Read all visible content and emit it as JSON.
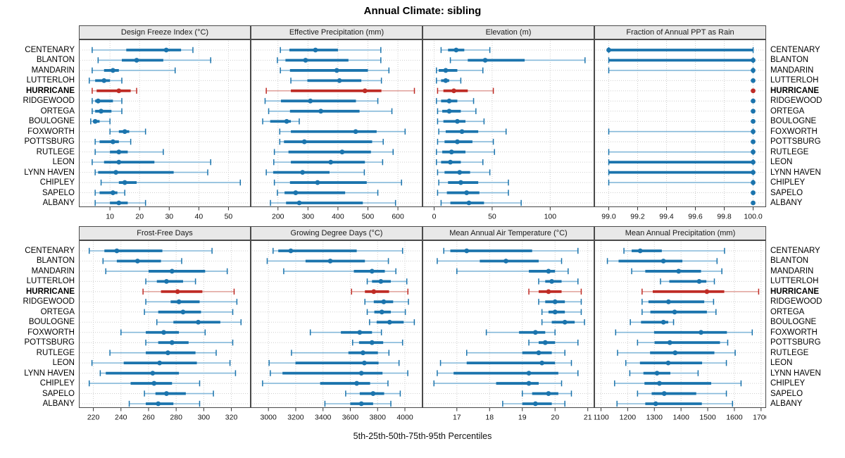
{
  "title": "Annual Climate: sibling",
  "xlabel": "5th-25th-50th-75th-95th Percentiles",
  "highlight_station": "HURRICANE",
  "stations": [
    "CENTENARY",
    "BLANTON",
    "MANDARIN",
    "LUTTERLOH",
    "HURRICANE",
    "RIDGEWOOD",
    "ORTEGA",
    "BOULOGNE",
    "FOXWORTH",
    "POTTSBURG",
    "RUTLEGE",
    "LEON",
    "LYNN HAVEN",
    "CHIPLEY",
    "SAPELO",
    "ALBANY"
  ],
  "colors": {
    "series": "#1b74ad",
    "series_light": "#85b9da",
    "highlight": "#bf2c26",
    "highlight_light": "#e0a09a",
    "grid": "#cfcfcf",
    "border": "#4a4a4a",
    "header_bg": "#e8e8e8",
    "tick": "#333333"
  },
  "chart_data": [
    {
      "type": "percentile-dotplot",
      "title": "Design Freeze Index (°C)",
      "percentiles": [
        5,
        25,
        50,
        75,
        95
      ],
      "xlim": [
        -0.5,
        57.5
      ],
      "ticks": [
        10,
        20,
        30,
        40,
        50
      ],
      "tick_labels": [
        "10",
        "20",
        "30",
        "40",
        "50"
      ],
      "values": [
        [
          4,
          15.5,
          29,
          34,
          38
        ],
        [
          6,
          14,
          19,
          28,
          44
        ],
        [
          4,
          8,
          11,
          13,
          32
        ],
        [
          3,
          5,
          8,
          10,
          14
        ],
        [
          4,
          5.5,
          13,
          17,
          19
        ],
        [
          4,
          5,
          6,
          11,
          14
        ],
        [
          4,
          5,
          7,
          10.5,
          14
        ],
        [
          3.5,
          4.5,
          5,
          6.5,
          10
        ],
        [
          10,
          13,
          15,
          16.5,
          22
        ],
        [
          5,
          6.5,
          11,
          13,
          17
        ],
        [
          5,
          10,
          13,
          16,
          28
        ],
        [
          4,
          8,
          13,
          25,
          44
        ],
        [
          5,
          6,
          12,
          31.5,
          43
        ],
        [
          7,
          13,
          15,
          19,
          54
        ],
        [
          5,
          6.5,
          11,
          12.5,
          15
        ],
        [
          5,
          10,
          13,
          16,
          22
        ]
      ]
    },
    {
      "type": "percentile-dotplot",
      "title": "Effective Precipitation (mm)",
      "percentiles": [
        5,
        25,
        50,
        75,
        95
      ],
      "xlim": [
        109,
        682
      ],
      "ticks": [
        200,
        300,
        400,
        500,
        600
      ],
      "tick_labels": [
        "200",
        "300",
        "400",
        "500",
        "600"
      ],
      "values": [
        [
          208,
          238,
          325,
          400,
          543
        ],
        [
          198,
          225,
          292,
          435,
          543
        ],
        [
          208,
          240,
          396,
          500,
          570
        ],
        [
          243,
          298,
          405,
          478,
          545
        ],
        [
          161,
          243,
          490,
          545,
          655
        ],
        [
          157,
          210,
          308,
          460,
          533
        ],
        [
          169,
          240,
          343,
          472,
          580
        ],
        [
          149,
          174,
          229,
          243,
          271
        ],
        [
          206,
          243,
          459,
          529,
          624
        ],
        [
          206,
          220,
          288,
          514,
          551
        ],
        [
          188,
          235,
          414,
          510,
          584
        ],
        [
          186,
          243,
          376,
          490,
          549
        ],
        [
          161,
          184,
          282,
          372,
          488
        ],
        [
          188,
          240,
          332,
          496,
          612
        ],
        [
          198,
          222,
          259,
          424,
          533
        ],
        [
          175,
          227,
          271,
          483,
          592
        ]
      ]
    },
    {
      "type": "percentile-dotplot",
      "title": "Elevation (m)",
      "percentiles": [
        5,
        25,
        50,
        75,
        95
      ],
      "xlim": [
        -10,
        138
      ],
      "ticks": [
        0,
        50,
        100
      ],
      "tick_labels": [
        "0",
        "50",
        "100"
      ],
      "values": [
        [
          6,
          12,
          19,
          26,
          48
        ],
        [
          14,
          29,
          44,
          78,
          130
        ],
        [
          2,
          4,
          10,
          20,
          42
        ],
        [
          2,
          6,
          10,
          13,
          23
        ],
        [
          3,
          8,
          17,
          29,
          51
        ],
        [
          2,
          6,
          13,
          20,
          34
        ],
        [
          3,
          7,
          13,
          23,
          36
        ],
        [
          3,
          8,
          20,
          27,
          43
        ],
        [
          4,
          10,
          24,
          38,
          62
        ],
        [
          3,
          9,
          20,
          33,
          51
        ],
        [
          2,
          7,
          15,
          27,
          52
        ],
        [
          2,
          6,
          14,
          23,
          42
        ],
        [
          3,
          9,
          22,
          31,
          48
        ],
        [
          4,
          12,
          23,
          38,
          64
        ],
        [
          3,
          11,
          28,
          39,
          64
        ],
        [
          6,
          14,
          30,
          43,
          75
        ]
      ]
    },
    {
      "type": "percentile-dotplot",
      "title": "Fraction of Annual PPT as Rain",
      "percentiles": [
        5,
        25,
        50,
        75,
        95
      ],
      "xlim": [
        98.9,
        100.09
      ],
      "ticks": [
        99.0,
        99.2,
        99.4,
        99.6,
        99.8,
        100.0
      ],
      "tick_labels": [
        "99.0",
        "99.2",
        "99.4",
        "99.6",
        "99.8",
        "100.0"
      ],
      "values": [
        [
          99,
          99,
          99,
          100,
          100
        ],
        [
          99,
          99,
          100,
          100,
          100
        ],
        [
          99,
          100,
          100,
          100,
          100
        ],
        [
          100,
          100,
          100,
          100,
          100
        ],
        [
          100,
          100,
          100,
          100,
          100
        ],
        [
          100,
          100,
          100,
          100,
          100
        ],
        [
          100,
          100,
          100,
          100,
          100
        ],
        [
          100,
          100,
          100,
          100,
          100
        ],
        [
          99,
          100,
          100,
          100,
          100
        ],
        [
          100,
          100,
          100,
          100,
          100
        ],
        [
          99,
          100,
          100,
          100,
          100
        ],
        [
          99,
          99,
          100,
          100,
          100
        ],
        [
          99,
          99,
          100,
          100,
          100
        ],
        [
          99,
          100,
          100,
          100,
          100
        ],
        [
          100,
          100,
          100,
          100,
          100
        ],
        [
          100,
          100,
          100,
          100,
          100
        ]
      ]
    },
    {
      "type": "percentile-dotplot",
      "title": "Frost-Free Days",
      "percentiles": [
        5,
        25,
        50,
        75,
        95
      ],
      "xlim": [
        209.5,
        334
      ],
      "ticks": [
        220,
        240,
        260,
        280,
        300,
        320
      ],
      "tick_labels": [
        "220",
        "240",
        "260",
        "280",
        "300",
        "320"
      ],
      "values": [
        [
          217,
          228,
          237,
          270,
          306
        ],
        [
          227,
          237,
          252,
          269,
          284
        ],
        [
          229,
          260,
          277,
          301,
          317
        ],
        [
          258,
          266,
          273,
          285,
          294
        ],
        [
          256,
          269,
          281,
          299,
          322
        ],
        [
          258,
          276,
          282,
          297,
          324
        ],
        [
          257,
          267,
          285,
          298,
          321
        ],
        [
          266,
          278,
          296,
          312,
          327
        ],
        [
          240,
          258,
          271,
          282,
          301
        ],
        [
          258,
          267,
          277,
          289,
          321
        ],
        [
          232,
          258,
          274,
          294,
          309
        ],
        [
          219,
          242,
          268,
          295,
          319
        ],
        [
          225,
          229,
          263,
          282,
          323
        ],
        [
          217,
          247,
          264,
          277,
          297
        ],
        [
          257,
          265,
          273,
          287,
          307
        ],
        [
          246,
          258,
          267,
          278,
          297
        ]
      ]
    },
    {
      "type": "percentile-dotplot",
      "title": "Growing Degree Days (°C)",
      "percentiles": [
        5,
        25,
        50,
        75,
        95
      ],
      "xlim": [
        2870,
        4129
      ],
      "ticks": [
        3000,
        3200,
        3400,
        3600,
        3800,
        4000
      ],
      "tick_labels": [
        "3000",
        "3200",
        "3400",
        "3600",
        "3800",
        "4000"
      ],
      "values": [
        [
          3034,
          3072,
          3164,
          3647,
          3983
        ],
        [
          2991,
          3272,
          3453,
          3707,
          3879
        ],
        [
          3112,
          3626,
          3759,
          3853,
          3934
        ],
        [
          3724,
          3759,
          3824,
          3897,
          4014
        ],
        [
          3609,
          3707,
          3772,
          3884,
          4022
        ],
        [
          3707,
          3772,
          3845,
          3914,
          4026
        ],
        [
          3724,
          3776,
          3831,
          3897,
          4003
        ],
        [
          3741,
          3793,
          3888,
          3991,
          4069
        ],
        [
          3307,
          3531,
          3669,
          3759,
          3828
        ],
        [
          3617,
          3664,
          3759,
          3841,
          3983
        ],
        [
          3169,
          3586,
          3693,
          3802,
          3883
        ],
        [
          3005,
          3198,
          3703,
          3807,
          3957
        ],
        [
          3014,
          3103,
          3681,
          3836,
          4021
        ],
        [
          2957,
          3379,
          3647,
          3745,
          3876
        ],
        [
          3566,
          3669,
          3767,
          3848,
          3966
        ],
        [
          3414,
          3600,
          3681,
          3767,
          3897
        ]
      ]
    },
    {
      "type": "percentile-dotplot",
      "title": "Mean Annual Air Temperature (°C)",
      "percentiles": [
        5,
        25,
        50,
        75,
        95
      ],
      "xlim": [
        15.95,
        21.2
      ],
      "ticks": [
        17,
        18,
        19,
        20,
        21
      ],
      "tick_labels": [
        "17",
        "18",
        "19",
        "20",
        "21"
      ],
      "values": [
        [
          16.6,
          16.8,
          17.3,
          19.3,
          20.7
        ],
        [
          16.4,
          17.7,
          18.5,
          19.5,
          20.2
        ],
        [
          17.0,
          19.2,
          19.8,
          20.0,
          20.4
        ],
        [
          19.5,
          19.7,
          19.9,
          20.2,
          20.7
        ],
        [
          19.2,
          19.5,
          19.8,
          20.2,
          20.8
        ],
        [
          19.5,
          19.7,
          20.0,
          20.3,
          20.8
        ],
        [
          19.6,
          19.8,
          20.0,
          20.3,
          20.8
        ],
        [
          19.6,
          19.9,
          20.3,
          20.6,
          20.9
        ],
        [
          17.9,
          18.9,
          19.4,
          19.7,
          20.0
        ],
        [
          19.2,
          19.5,
          19.7,
          20.0,
          20.7
        ],
        [
          17.3,
          19.0,
          19.5,
          19.9,
          20.3
        ],
        [
          16.5,
          17.3,
          19.6,
          20.0,
          20.5
        ],
        [
          16.4,
          16.9,
          19.2,
          20.1,
          20.7
        ],
        [
          16.3,
          18.2,
          19.2,
          19.5,
          20.2
        ],
        [
          19.0,
          19.3,
          19.8,
          20.1,
          20.5
        ],
        [
          18.4,
          19.0,
          19.4,
          19.9,
          20.3
        ]
      ]
    },
    {
      "type": "percentile-dotplot",
      "title": "Mean Annual Precipitation (mm)",
      "percentiles": [
        5,
        25,
        50,
        75,
        95
      ],
      "xlim": [
        1075,
        1719
      ],
      "ticks": [
        1100,
        1200,
        1300,
        1400,
        1500,
        1600,
        1700
      ],
      "tick_labels": [
        "1100",
        "1200",
        "1300",
        "1400",
        "1500",
        "1600",
        "1700"
      ],
      "values": [
        [
          1186,
          1215,
          1247,
          1328,
          1563
        ],
        [
          1124,
          1166,
          1334,
          1405,
          1535
        ],
        [
          1215,
          1266,
          1391,
          1475,
          1553
        ],
        [
          1323,
          1356,
          1468,
          1495,
          1525
        ],
        [
          1254,
          1294,
          1497,
          1562,
          1691
        ],
        [
          1254,
          1278,
          1353,
          1487,
          1522
        ],
        [
          1254,
          1285,
          1376,
          1497,
          1531
        ],
        [
          1210,
          1250,
          1334,
          1352,
          1372
        ],
        [
          1155,
          1299,
          1475,
          1572,
          1667
        ],
        [
          1237,
          1301,
          1358,
          1546,
          1575
        ],
        [
          1162,
          1284,
          1378,
          1525,
          1603
        ],
        [
          1193,
          1246,
          1352,
          1479,
          1570
        ],
        [
          1208,
          1259,
          1310,
          1360,
          1464
        ],
        [
          1151,
          1263,
          1319,
          1513,
          1625
        ],
        [
          1237,
          1290,
          1337,
          1457,
          1570
        ],
        [
          1160,
          1266,
          1305,
          1478,
          1593
        ]
      ]
    }
  ]
}
